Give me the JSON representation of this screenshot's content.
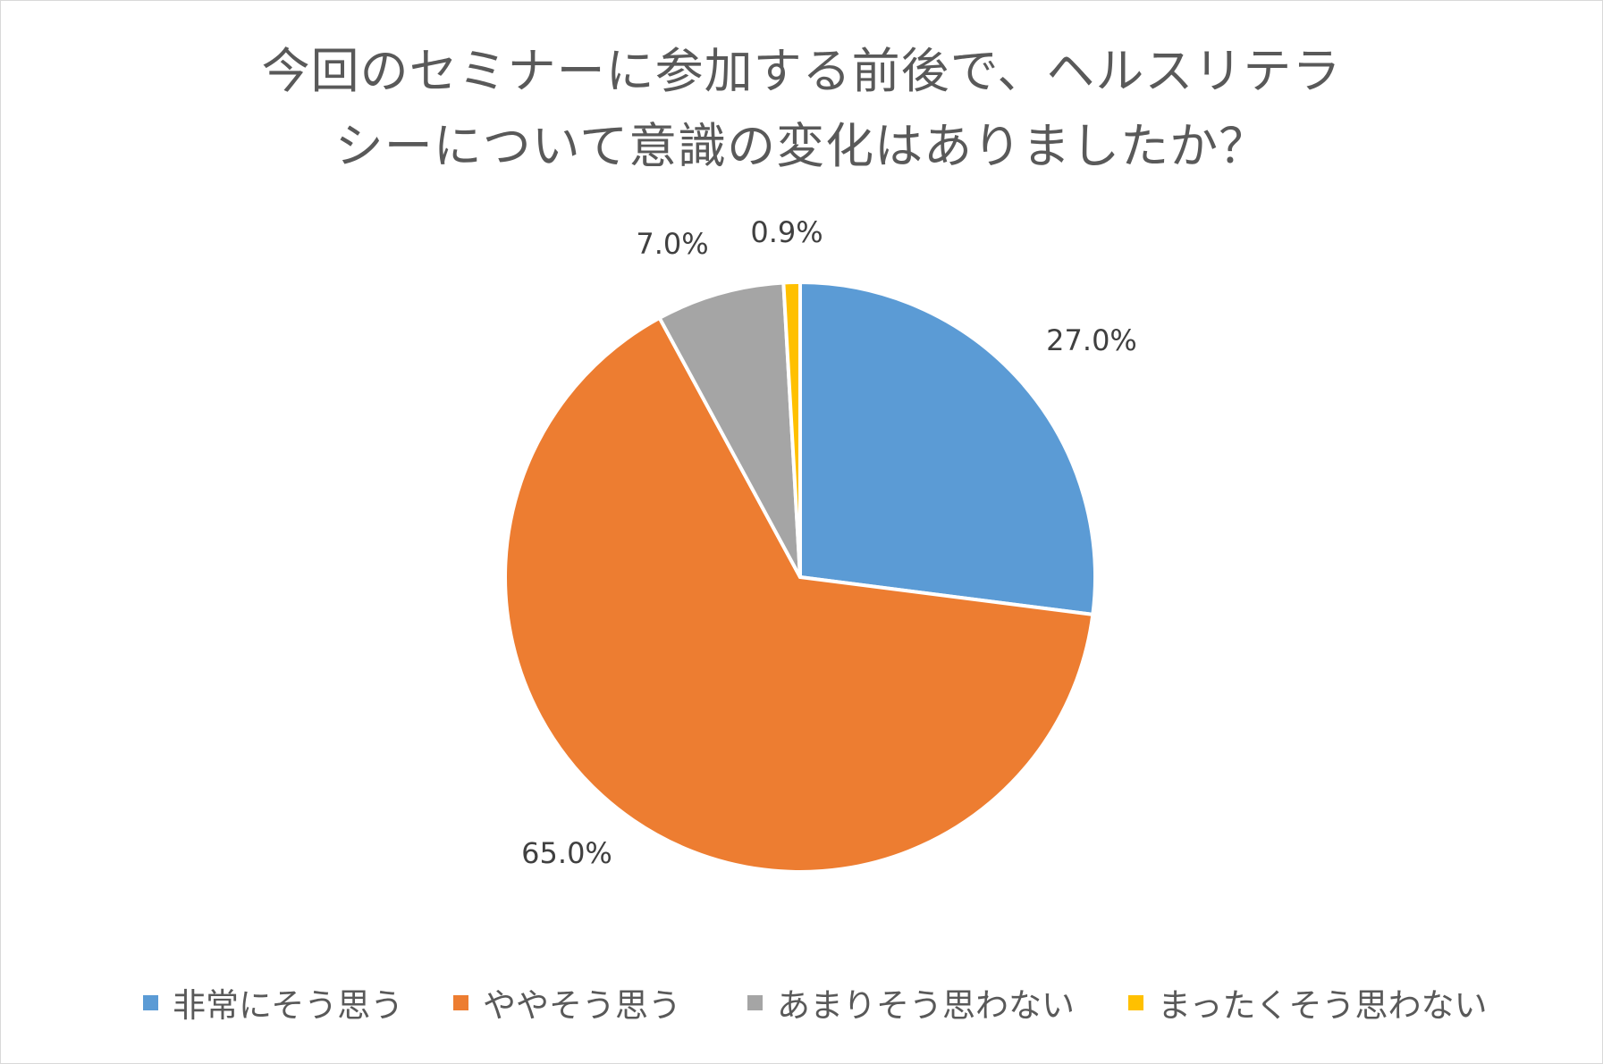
{
  "chart_data": {
    "type": "pie",
    "title": [
      "今回のセミナーに参加する前後で、ヘルスリテラ",
      "シーについて意識の変化はありましたか？"
    ],
    "start_angle_deg": 0,
    "direction": "clockwise",
    "legend_position": "bottom",
    "slices": [
      {
        "label": "非常にそう思う",
        "value": 27.0,
        "display": "27.0%",
        "color": "#5b9bd5"
      },
      {
        "label": "ややそう思う",
        "value": 65.0,
        "display": "65.0%",
        "color": "#ed7d31"
      },
      {
        "label": "あまりそう思わない",
        "value": 7.0,
        "display": "7.0%",
        "color": "#a5a5a5"
      },
      {
        "label": "まったくそう思わない",
        "value": 0.9,
        "display": "0.9%",
        "color": "#ffc000"
      }
    ]
  }
}
